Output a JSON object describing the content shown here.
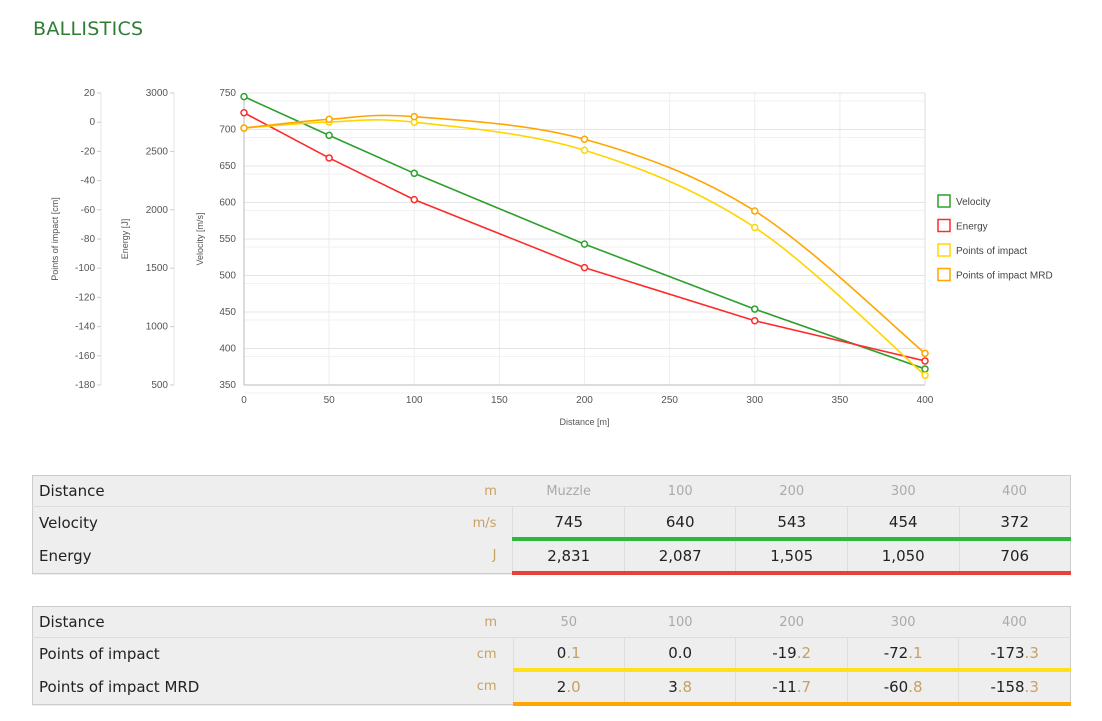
{
  "title": "BALLISTICS",
  "chart_data": {
    "type": "line",
    "x": [
      0,
      50,
      100,
      200,
      300,
      400
    ],
    "xlabel": "Distance [m]",
    "xlim": [
      0,
      400
    ],
    "xticks": [
      0,
      50,
      100,
      150,
      200,
      250,
      300,
      350,
      400
    ],
    "axes": [
      {
        "label": "Points of impact [cm]",
        "lim": [
          -180,
          20
        ],
        "ticks": [
          20,
          0,
          -20,
          -40,
          -60,
          -80,
          -100,
          -120,
          -140,
          -160,
          -180
        ]
      },
      {
        "label": "Energy [J]",
        "lim": [
          500,
          3000
        ],
        "ticks": [
          3000,
          2500,
          2000,
          1500,
          1000,
          500
        ]
      },
      {
        "label": "Velocity [m/s]",
        "lim": [
          350,
          750
        ],
        "ticks": [
          750,
          700,
          650,
          600,
          550,
          500,
          450,
          400,
          350
        ]
      }
    ],
    "series": [
      {
        "name": "Velocity",
        "axis": 2,
        "color": "#2ca02c",
        "values": [
          745,
          692,
          640,
          543,
          454,
          372
        ]
      },
      {
        "name": "Energy",
        "axis": 1,
        "color": "#ff2a2a",
        "values": [
          2831,
          2444,
          2087,
          1505,
          1050,
          706
        ]
      },
      {
        "name": "Points of impact",
        "axis": 0,
        "color": "#ffd500",
        "values": [
          -4,
          0.1,
          0.0,
          -19.2,
          -72.1,
          -173.3
        ]
      },
      {
        "name": "Points of impact MRD",
        "axis": 0,
        "color": "#ffa500",
        "values": [
          -4,
          2.0,
          3.8,
          -11.7,
          -60.8,
          -158.3
        ]
      }
    ],
    "grid": true,
    "legend": "right"
  },
  "table1": {
    "header": {
      "label": "Distance",
      "unit": "m",
      "cols": [
        "Muzzle",
        "100",
        "200",
        "300",
        "400"
      ]
    },
    "rows": [
      {
        "label": "Velocity",
        "unit": "m/s",
        "color": "#2db83d",
        "values": [
          "745",
          "640",
          "543",
          "454",
          "372"
        ]
      },
      {
        "label": "Energy",
        "unit": "J",
        "color": "#e8403a",
        "values": [
          "2,831",
          "2,087",
          "1,505",
          "1,050",
          "706"
        ]
      }
    ]
  },
  "table2": {
    "header": {
      "label": "Distance",
      "unit": "m",
      "cols": [
        "50",
        "100",
        "200",
        "300",
        "400"
      ]
    },
    "rows": [
      {
        "label": "Points of impact",
        "unit": "cm",
        "color": "#ffe01a",
        "values": [
          [
            "0",
            ".1"
          ],
          [
            "0",
            ".0"
          ],
          [
            "-19",
            ".2"
          ],
          [
            "-72",
            ".1"
          ],
          [
            "-173",
            ".3"
          ]
        ]
      },
      {
        "label": "Points of impact MRD",
        "unit": "cm",
        "color": "#ffa500",
        "values": [
          [
            "2",
            ".0"
          ],
          [
            "3",
            ".8"
          ],
          [
            "-11",
            ".7"
          ],
          [
            "-60",
            ".8"
          ],
          [
            "-158",
            ".3"
          ]
        ]
      }
    ]
  }
}
